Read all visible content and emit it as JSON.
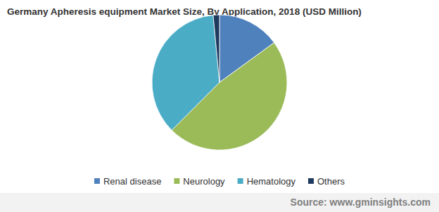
{
  "chart_data": {
    "type": "pie",
    "title": "Germany Apheresis equipment Market Size, By Application, 2018 (USD Million)",
    "categories": [
      "Renal disease",
      "Neurology",
      "Hematology",
      "Others"
    ],
    "values": [
      15,
      47.5,
      36,
      1.5
    ],
    "colors": [
      "#4f81bd",
      "#9bbb59",
      "#4bacc6",
      "#1f3a5f"
    ],
    "legend": "bottom",
    "annotations": [
      "Source: www.gminsights.com"
    ]
  }
}
